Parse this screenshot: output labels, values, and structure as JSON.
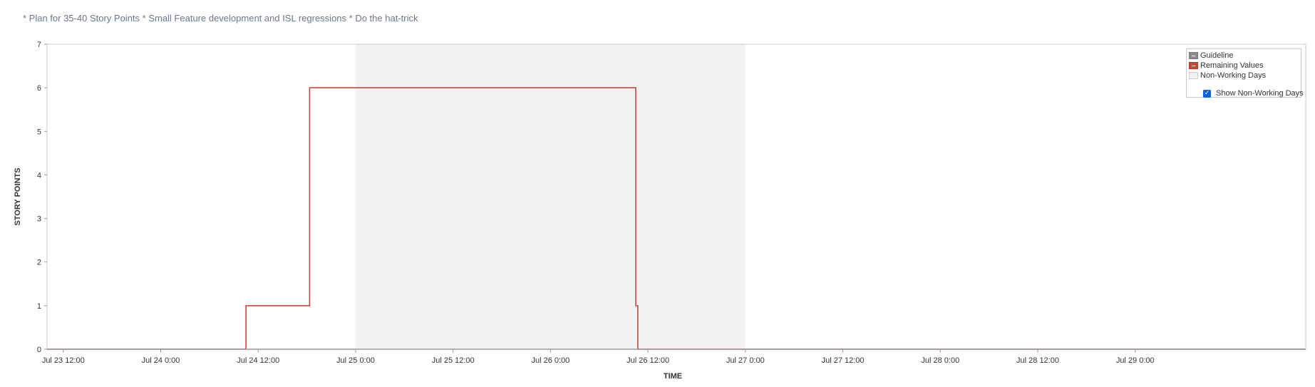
{
  "sprint_goal": "* Plan for 35-40 Story Points * Small Feature development and ISL regressions * Do the hat-trick",
  "legend": {
    "guideline": "Guideline",
    "remaining": "Remaining Values",
    "non_working": "Non-Working Days",
    "show_non_working": "Show Non-Working Days",
    "show_non_working_checked": true
  },
  "colors": {
    "remaining_line": "#d04437",
    "guideline": "#999999",
    "non_working_band": "#f2f2f2",
    "axis_text": "#333333",
    "frame": "#cccccc"
  },
  "chart_data": {
    "type": "line",
    "title": "",
    "xlabel": "TIME",
    "ylabel": "STORY POINTS",
    "ylim": [
      0,
      7
    ],
    "xlim": [
      "2023-07-23 10:00",
      "2023-07-29 21:00"
    ],
    "x_ticks": [
      "Jul 23 12:00",
      "Jul 24 0:00",
      "Jul 24 12:00",
      "Jul 25 0:00",
      "Jul 25 12:00",
      "Jul 26 0:00",
      "Jul 26 12:00",
      "Jul 27 0:00",
      "Jul 27 12:00",
      "Jul 28 0:00",
      "Jul 28 12:00",
      "Jul 29 0:00"
    ],
    "y_ticks": [
      0,
      1,
      2,
      3,
      4,
      5,
      6,
      7
    ],
    "non_working_days": [
      [
        "2023-07-25 00:00",
        "2023-07-27 00:00"
      ]
    ],
    "series": [
      {
        "name": "Remaining Values",
        "step": true,
        "points": [
          [
            "2023-07-23 10:00",
            0
          ],
          [
            "2023-07-24 10:30",
            0
          ],
          [
            "2023-07-24 10:30",
            1
          ],
          [
            "2023-07-24 18:20",
            1
          ],
          [
            "2023-07-24 18:20",
            6
          ],
          [
            "2023-07-26 10:30",
            6
          ],
          [
            "2023-07-26 10:30",
            1
          ],
          [
            "2023-07-26 10:45",
            1
          ],
          [
            "2023-07-26 10:45",
            0
          ],
          [
            "2023-07-29 21:00",
            0
          ]
        ]
      },
      {
        "name": "Guideline",
        "step": false,
        "points": [
          [
            "2023-07-23 10:00",
            0
          ],
          [
            "2023-07-29 21:00",
            0
          ]
        ]
      }
    ]
  }
}
